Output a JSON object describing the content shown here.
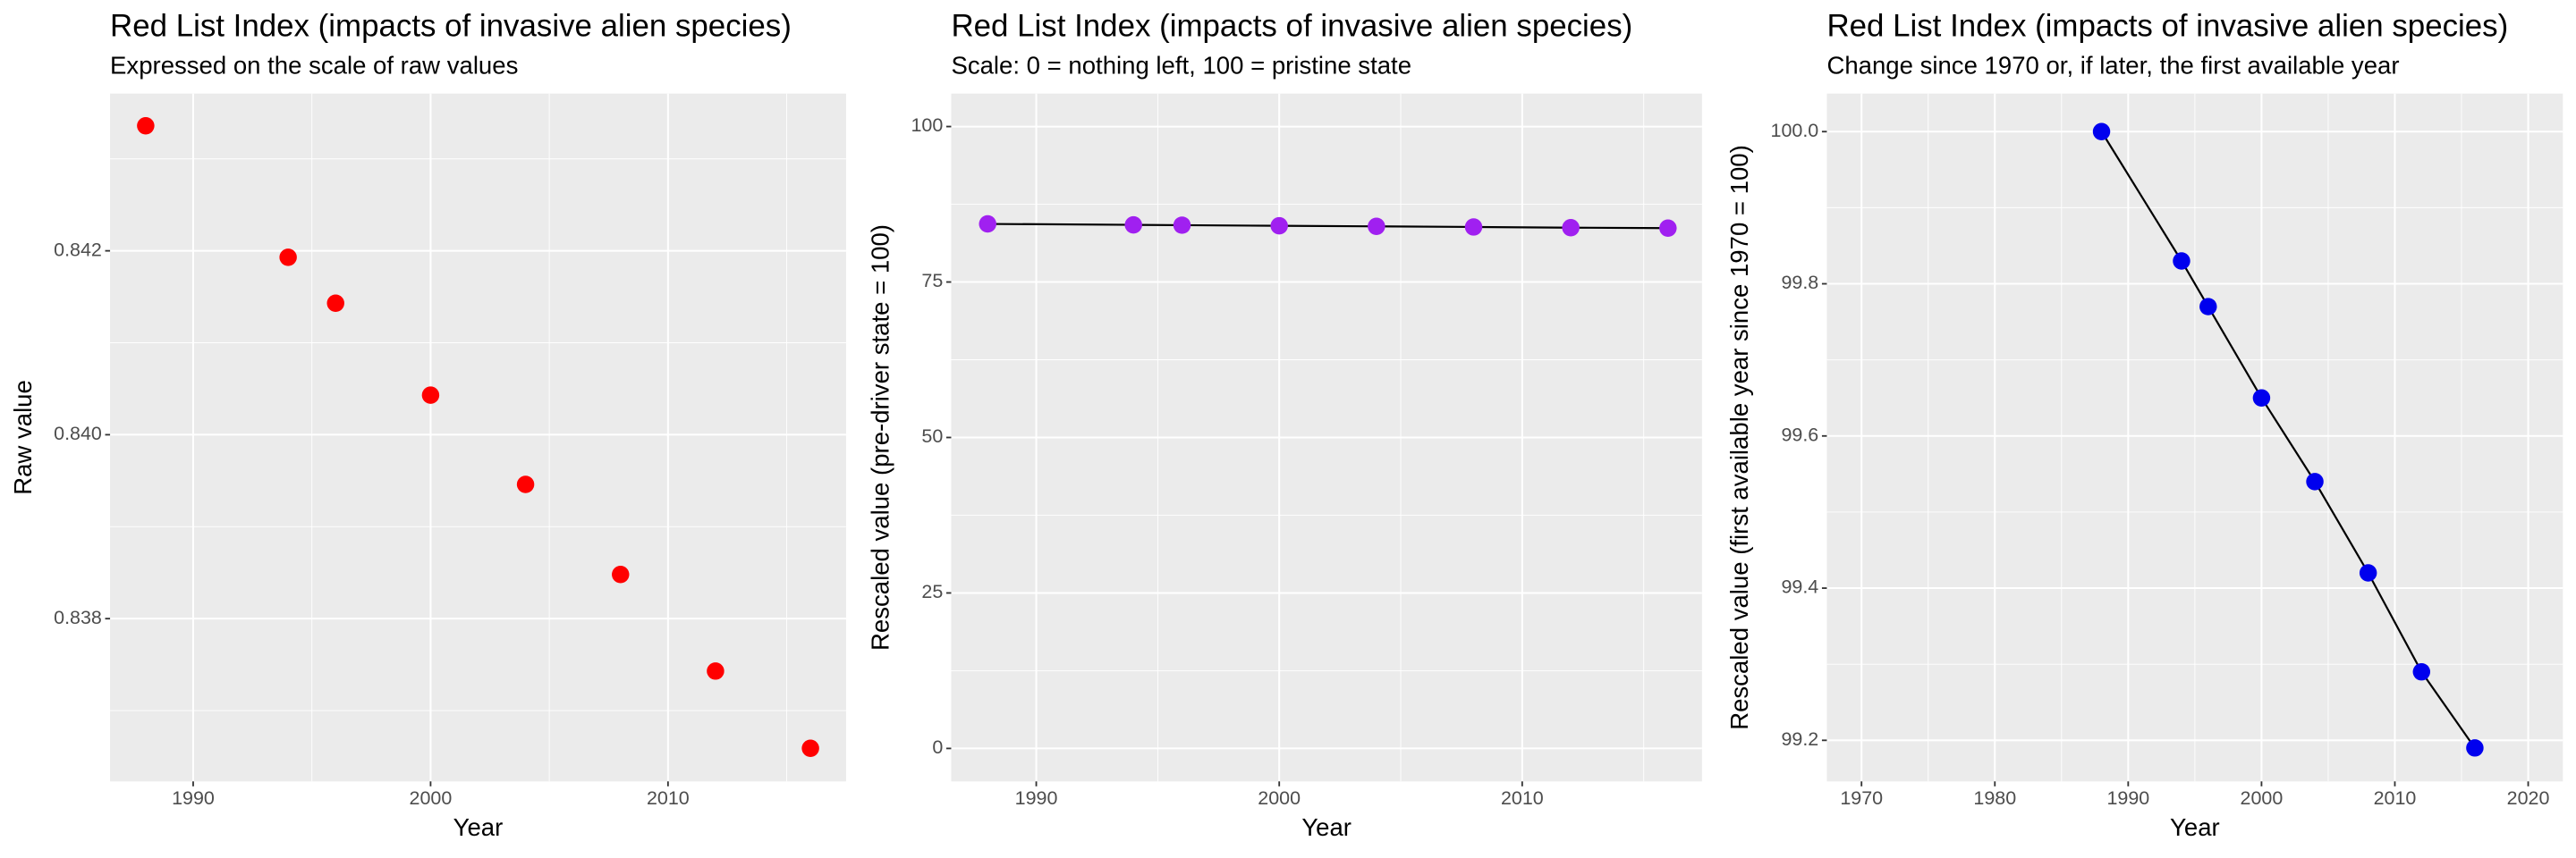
{
  "chart_data": [
    {
      "type": "scatter",
      "title": "Red List Index (impacts of invasive alien species)",
      "subtitle": "Expressed on the scale of raw values",
      "x_label": "Year",
      "y_label": "Raw value",
      "x": [
        1988,
        1994,
        1996,
        2000,
        2004,
        2008,
        2012,
        2016
      ],
      "series": [
        {
          "color": "#ff0000",
          "values": [
            0.84336,
            0.84193,
            0.84143,
            0.84043,
            0.83946,
            0.83848,
            0.83743,
            0.83659
          ]
        }
      ],
      "xlim": [
        1986.5,
        2017.5
      ],
      "xticks": [
        1990,
        2000,
        2010
      ],
      "minor_xticks": [
        1995,
        2005,
        2015
      ],
      "ylim": [
        0.83623,
        0.84371
      ],
      "yticks": [
        0.838,
        0.84,
        0.842
      ],
      "minor_yticks": [
        0.837,
        0.839,
        0.841,
        0.843
      ],
      "yticklabels": [
        "0.838",
        "0.840",
        "0.842"
      ],
      "grid": true
    },
    {
      "type": "line",
      "title": "Red List Index (impacts of invasive alien species)",
      "subtitle": "Scale: 0 = nothing left, 100 = pristine state",
      "x_label": "Year",
      "y_label": "Rescaled value (pre-driver state = 100)",
      "x": [
        1988,
        1994,
        1996,
        2000,
        2004,
        2008,
        2012,
        2016
      ],
      "series": [
        {
          "color": "#a020f0",
          "values": [
            84.34,
            84.19,
            84.14,
            84.04,
            83.95,
            83.85,
            83.74,
            83.66
          ]
        }
      ],
      "xlim": [
        1986.5,
        2017.4
      ],
      "xticks": [
        1990,
        2000,
        2010
      ],
      "minor_xticks": [
        1995,
        2005,
        2015
      ],
      "ylim": [
        -5.3,
        105.3
      ],
      "yticks": [
        0,
        25,
        50,
        75,
        100
      ],
      "minor_yticks": [
        12.5,
        37.5,
        62.5,
        87.5
      ],
      "grid": true
    },
    {
      "type": "line",
      "title": "Red List Index (impacts of invasive alien species)",
      "subtitle": "Change since 1970 or, if later, the first available year",
      "x_label": "Year",
      "y_label": "Rescaled value (first available year since 1970 = 100)",
      "x": [
        1988,
        1994,
        1996,
        2000,
        2004,
        2008,
        2012,
        2016
      ],
      "series": [
        {
          "color": "#0000ee",
          "values": [
            100,
            99.83,
            99.77,
            99.65,
            99.54,
            99.42,
            99.29,
            99.19
          ]
        }
      ],
      "xlim": [
        1967.4,
        2022.6
      ],
      "xticks": [
        1970,
        1980,
        1990,
        2000,
        2010,
        2020
      ],
      "minor_xticks": [
        1975,
        1985,
        1995,
        2005,
        2015
      ],
      "ylim": [
        99.146,
        100.05
      ],
      "yticks": [
        99.2,
        99.4,
        99.6,
        99.8,
        {
          "value": 100,
          "label": "100.0"
        }
      ],
      "minor_yticks": [
        99.3,
        99.5,
        99.7,
        99.9
      ],
      "grid": true
    }
  ]
}
